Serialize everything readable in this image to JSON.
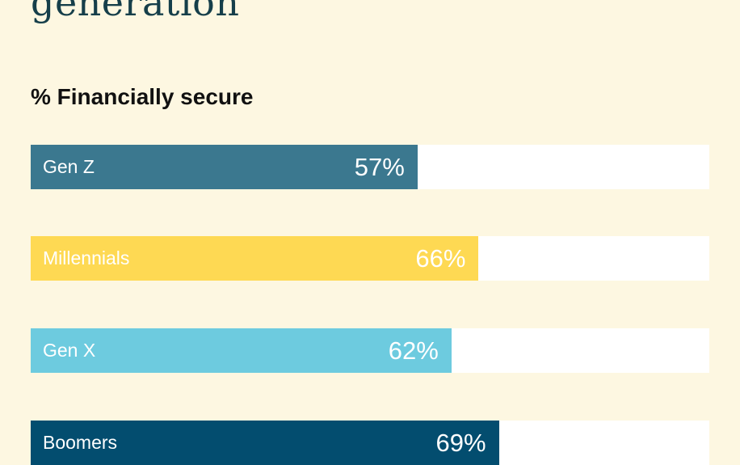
{
  "title": "generation",
  "chart_data": {
    "type": "bar",
    "orientation": "horizontal",
    "title": "% Financially secure",
    "categories": [
      "Gen Z",
      "Millennials",
      "Gen X",
      "Boomers"
    ],
    "values": [
      57,
      66,
      62,
      69
    ],
    "value_labels": [
      "57%",
      "66%",
      "62%",
      "69%"
    ],
    "xlim": [
      0,
      100
    ],
    "colors": [
      "#3b788f",
      "#fed953",
      "#6dcbdf",
      "#034d6f"
    ],
    "track_color": "#ffffff",
    "grid": false
  }
}
